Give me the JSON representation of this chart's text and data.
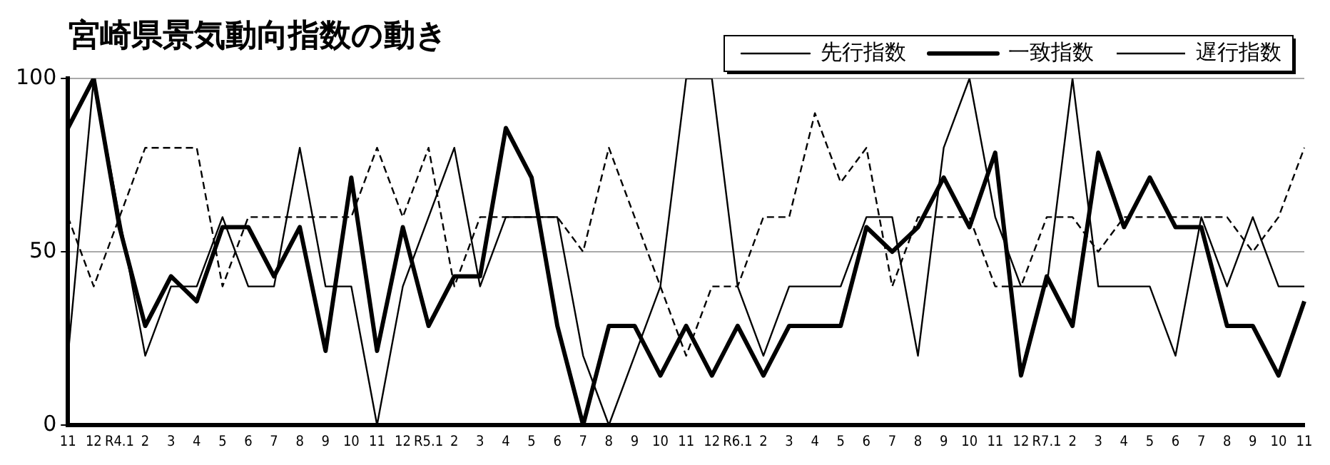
{
  "chart_data": {
    "type": "line",
    "title": "宮崎県景気動向指数の動き",
    "categories": [
      "11",
      "12",
      "R4.1",
      "2",
      "3",
      "4",
      "5",
      "6",
      "7",
      "8",
      "9",
      "10",
      "11",
      "12",
      "R5.1",
      "2",
      "3",
      "4",
      "5",
      "6",
      "7",
      "8",
      "9",
      "10",
      "11",
      "12",
      "R6.1",
      "2",
      "3",
      "4",
      "5",
      "6",
      "7",
      "8",
      "9",
      "10",
      "11",
      "12",
      "R7.1",
      "2",
      "3",
      "4",
      "5",
      "6",
      "7",
      "8",
      "9",
      "10",
      "11"
    ],
    "series": [
      {
        "name": "先行指数",
        "color": "#000000",
        "line_style": "solid",
        "values": [
          20,
          100,
          60,
          20,
          40,
          40,
          60,
          40,
          40,
          80,
          40,
          40,
          0,
          40,
          60,
          80,
          40,
          60,
          60,
          60,
          20,
          0,
          20,
          40,
          100,
          100,
          40,
          20,
          40,
          40,
          40,
          60,
          60,
          20,
          80,
          100,
          60,
          40,
          40,
          100,
          40,
          40,
          40,
          20,
          60,
          40,
          60,
          40,
          40
        ]
      },
      {
        "name": "一致指数",
        "color": "#000000",
        "line_style": "solid",
        "values": [
          85.7,
          100,
          57.1,
          28.6,
          42.9,
          35.7,
          57.1,
          57.1,
          42.9,
          57.1,
          21.4,
          71.4,
          21.4,
          57.1,
          28.6,
          42.9,
          42.9,
          85.7,
          71.4,
          28.6,
          0,
          28.6,
          28.6,
          14.3,
          28.6,
          14.3,
          28.6,
          14.3,
          28.6,
          28.6,
          28.6,
          57.1,
          50,
          57.1,
          71.4,
          57.1,
          78.6,
          14.3,
          42.9,
          28.6,
          78.6,
          57.1,
          71.4,
          57.1,
          57.1,
          28.6,
          28.6,
          14.3,
          35.7
        ]
      },
      {
        "name": "遅行指数",
        "color": "#000000",
        "line_style": "dashed",
        "values": [
          60,
          40,
          60,
          80,
          80,
          80,
          40,
          60,
          60,
          60,
          60,
          60,
          80,
          60,
          80,
          40,
          60,
          60,
          60,
          60,
          50,
          80,
          60,
          40,
          20,
          40,
          40,
          60,
          60,
          90,
          70,
          80,
          40,
          60,
          60,
          60,
          40,
          40,
          60,
          60,
          50,
          60,
          60,
          60,
          60,
          60,
          50,
          60,
          80
        ]
      }
    ],
    "ylim": [
      0,
      100
    ],
    "yticks": [
      0,
      50,
      100
    ],
    "grid": "y",
    "legend": "top right",
    "marker": "none"
  }
}
